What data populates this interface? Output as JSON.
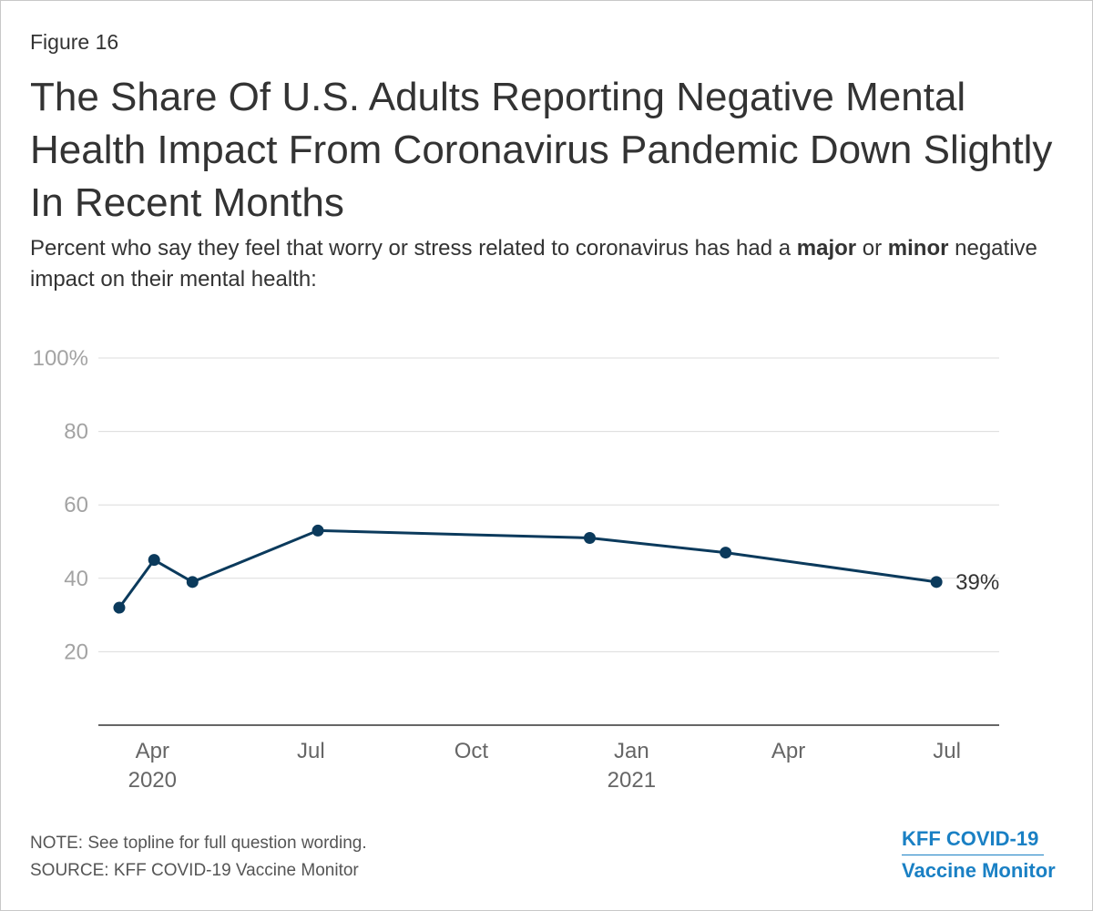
{
  "figure_label": "Figure 16",
  "title": "The Share Of U.S. Adults Reporting Negative Mental Health Impact From Coronavirus Pandemic Down Slightly In Recent Months",
  "subtitle": {
    "part1": "Percent who say they feel that worry or stress related to coronavirus has had a ",
    "bold1": "major",
    "part2": " or ",
    "bold2": "minor",
    "part3": " negative impact on their mental health:"
  },
  "notes": {
    "note": "NOTE: See topline for full question wording.",
    "source": "SOURCE: KFF COVID-19 Vaccine Monitor"
  },
  "brand": {
    "line1": "KFF COVID-19",
    "line2": "Vaccine Monitor"
  },
  "colors": {
    "line": "#0b3a5c",
    "grid": "#dcdcdc",
    "axis": "#333333",
    "brand": "#1a80c4"
  },
  "chart_data": {
    "type": "line",
    "title": "The Share Of U.S. Adults Reporting Negative Mental Health Impact From Coronavirus Pandemic Down Slightly In Recent Months",
    "xlabel": "",
    "ylabel": "",
    "ylim": [
      0,
      100
    ],
    "xlim": [
      "2020-03-01",
      "2021-07-31"
    ],
    "y_ticks": [
      {
        "value": 20,
        "label": "20"
      },
      {
        "value": 40,
        "label": "40"
      },
      {
        "value": 60,
        "label": "60"
      },
      {
        "value": 80,
        "label": "80"
      },
      {
        "value": 100,
        "label": "100%"
      }
    ],
    "x_ticks": [
      {
        "date": "2020-04-01",
        "label": "Apr",
        "year": "2020"
      },
      {
        "date": "2020-07-01",
        "label": "Jul",
        "year": ""
      },
      {
        "date": "2020-10-01",
        "label": "Oct",
        "year": ""
      },
      {
        "date": "2021-01-01",
        "label": "Jan",
        "year": "2021"
      },
      {
        "date": "2021-04-01",
        "label": "Apr",
        "year": ""
      },
      {
        "date": "2021-07-01",
        "label": "Jul",
        "year": ""
      }
    ],
    "series": [
      {
        "name": "Negative mental health impact",
        "points": [
          {
            "date": "2020-03-13",
            "value": 32
          },
          {
            "date": "2020-04-02",
            "value": 45
          },
          {
            "date": "2020-04-24",
            "value": 39
          },
          {
            "date": "2020-07-05",
            "value": 53
          },
          {
            "date": "2020-12-08",
            "value": 51
          },
          {
            "date": "2021-02-24",
            "value": 47
          },
          {
            "date": "2021-06-25",
            "value": 39
          }
        ],
        "end_label": "39%"
      }
    ]
  }
}
